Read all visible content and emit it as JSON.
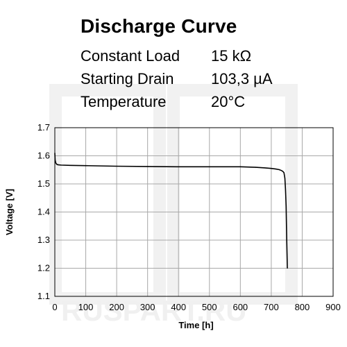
{
  "header": {
    "title": "Discharge Curve",
    "rows": [
      {
        "label": "Constant Load",
        "value": "15 kΩ"
      },
      {
        "label": "Starting Drain",
        "value": "103,3 µA"
      },
      {
        "label": "Temperature",
        "value": "20°C"
      }
    ]
  },
  "watermark": {
    "text": "RUSPART.RU",
    "color": "#f2f2f2"
  },
  "chart_data": {
    "type": "line",
    "xlabel": "Time [h]",
    "ylabel": "Voltage [V]",
    "xlim": [
      0,
      900
    ],
    "ylim": [
      1.1,
      1.7
    ],
    "xticks": [
      0,
      100,
      200,
      300,
      400,
      500,
      600,
      700,
      800,
      900
    ],
    "yticks": [
      1.1,
      1.2,
      1.3,
      1.4,
      1.5,
      1.6,
      1.7
    ],
    "ytick_labels": [
      "1.1",
      "1.2",
      "1.3",
      "1.4",
      "1.5",
      "1.6",
      "1.7"
    ],
    "grid": true,
    "line_color": "#000000",
    "series": [
      {
        "x": [
          0,
          1,
          3,
          6,
          10,
          20,
          50,
          100,
          200,
          300,
          400,
          500,
          600,
          650,
          680,
          700,
          715,
          725,
          732,
          737,
          741,
          744,
          746,
          748,
          749,
          750,
          751,
          752
        ],
        "y": [
          1.61,
          1.585,
          1.575,
          1.57,
          1.568,
          1.567,
          1.566,
          1.565,
          1.563,
          1.562,
          1.561,
          1.561,
          1.561,
          1.559,
          1.557,
          1.555,
          1.553,
          1.551,
          1.548,
          1.545,
          1.54,
          1.52,
          1.48,
          1.42,
          1.36,
          1.3,
          1.25,
          1.2
        ]
      }
    ]
  }
}
